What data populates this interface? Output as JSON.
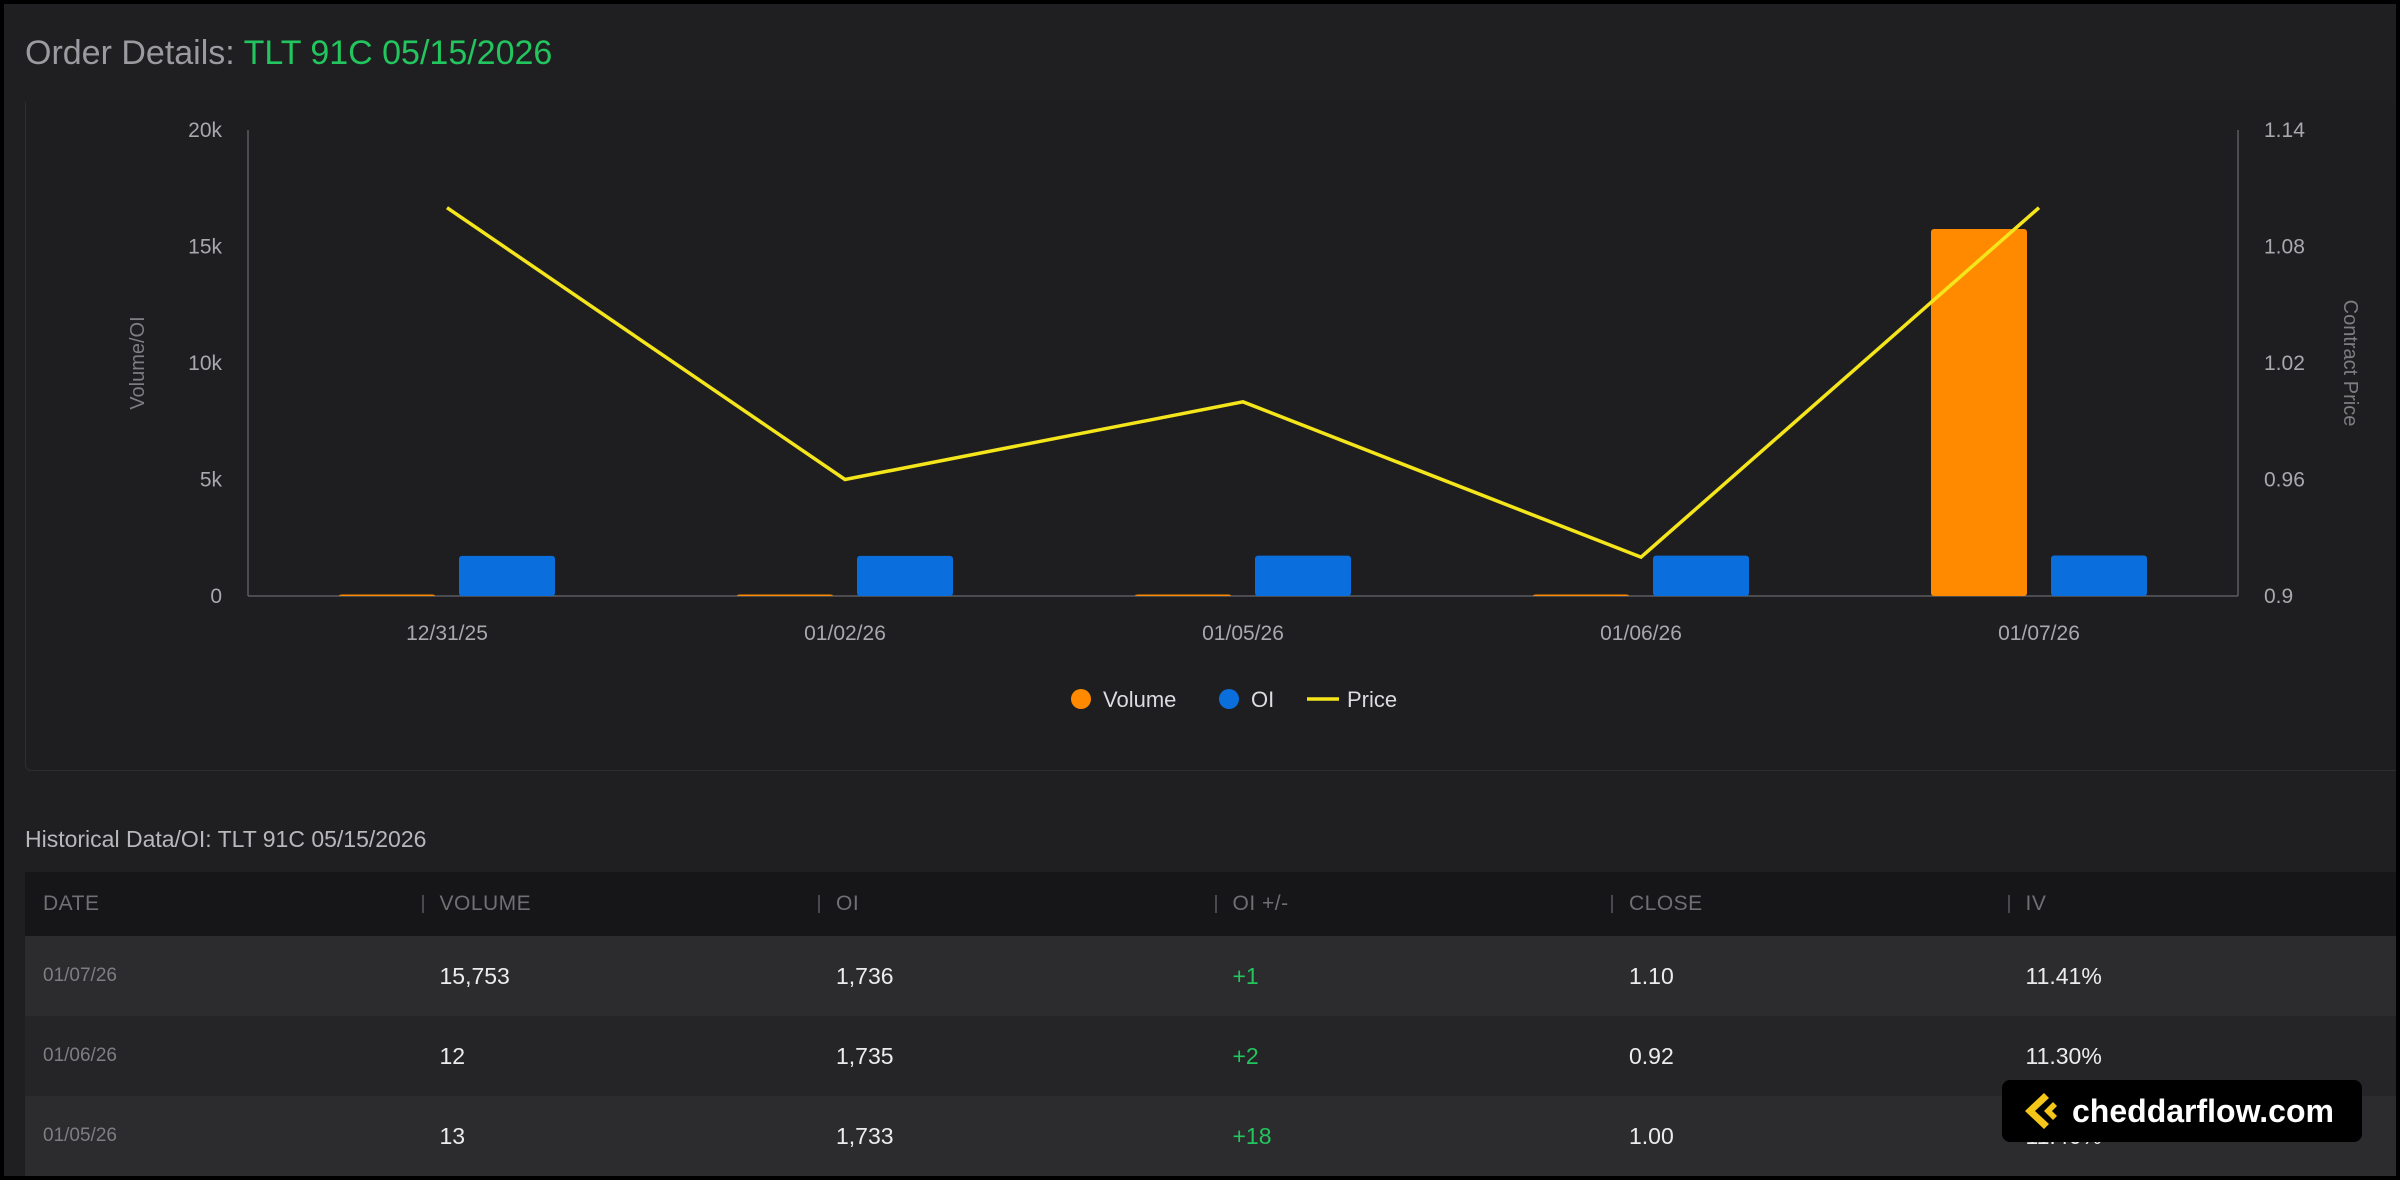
{
  "header": {
    "label": "Order Details:",
    "contract": "TLT 91C 05/15/2026"
  },
  "chart_data": {
    "type": "bar",
    "categories": [
      "12/31/25",
      "01/02/26",
      "01/05/26",
      "01/06/26",
      "01/07/26"
    ],
    "series": [
      {
        "name": "Volume",
        "kind": "bar",
        "axis": "left",
        "color": "#ff8a00",
        "values": [
          20,
          15,
          13,
          12,
          15753
        ]
      },
      {
        "name": "OI",
        "kind": "bar",
        "axis": "left",
        "color": "#0a6fdc",
        "values": [
          1720,
          1720,
          1733,
          1735,
          1736
        ]
      },
      {
        "name": "Price",
        "kind": "line",
        "axis": "right",
        "color": "#f5e51b",
        "values": [
          1.1,
          0.96,
          1.0,
          0.92,
          1.1
        ]
      }
    ],
    "ylabel": "Volume/OI",
    "ylabel_right": "Contract Price",
    "ylim": [
      0,
      20000
    ],
    "ylim_right": [
      0.9,
      1.14
    ],
    "yticks": [
      "0",
      "5k",
      "10k",
      "15k",
      "20k"
    ],
    "yticks_right": [
      "0.9",
      "0.96",
      "1.02",
      "1.08",
      "1.14"
    ],
    "legend_position": "bottom-center",
    "grid": false
  },
  "table": {
    "title": "Historical Data/OI: TLT 91C 05/15/2026",
    "columns": [
      "DATE",
      "VOLUME",
      "OI",
      "OI +/-",
      "CLOSE",
      "IV"
    ],
    "rows": [
      [
        "01/07/26",
        "15,753",
        "1,736",
        "+1",
        "1.10",
        "11.41%"
      ],
      [
        "01/06/26",
        "12",
        "1,735",
        "+2",
        "0.92",
        "11.30%"
      ],
      [
        "01/05/26",
        "13",
        "1,733",
        "+18",
        "1.00",
        "11.46%"
      ]
    ]
  },
  "watermark": {
    "text": "cheddarflow.com",
    "icon": "cheddarflow-logo-icon",
    "color": "#f5c518"
  }
}
